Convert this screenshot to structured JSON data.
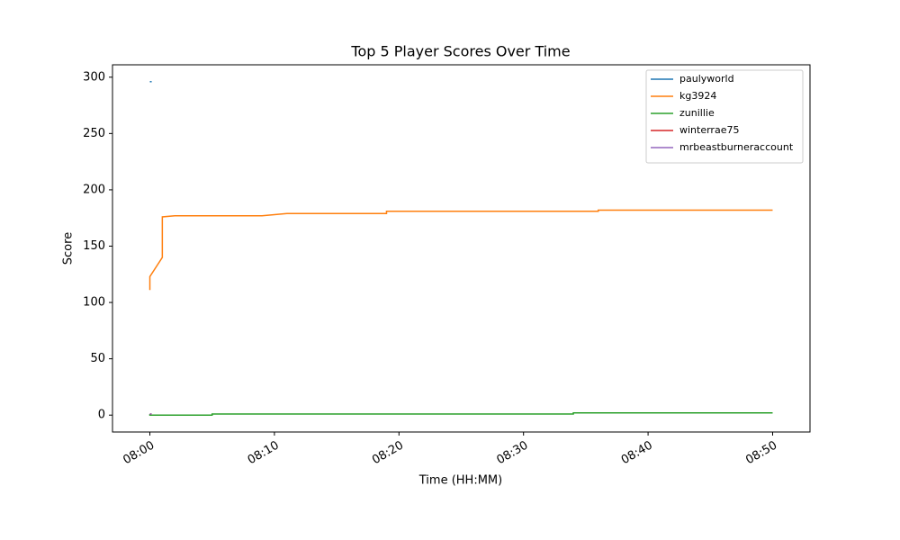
{
  "chart_data": {
    "type": "line",
    "title": "Top 5 Player Scores Over Time",
    "x_label": "Time (HH:MM)",
    "y_label": "Score",
    "xlim": [
      "07:57",
      "08:53"
    ],
    "xticks": [
      "08:00",
      "08:10",
      "08:20",
      "08:30",
      "08:40",
      "08:50"
    ],
    "ylim": [
      -15,
      311
    ],
    "yticks": [
      0,
      50,
      100,
      150,
      200,
      250,
      300
    ],
    "legend": "upper right",
    "series": [
      {
        "name": "paulyworld",
        "color": "#1f77b4",
        "x": [
          "08:00"
        ],
        "values": [
          296
        ]
      },
      {
        "name": "kg3924",
        "color": "#ff7f0e",
        "x": [
          "08:00",
          "08:00",
          "08:01",
          "08:01",
          "08:02",
          "08:09",
          "08:10",
          "08:11",
          "08:19",
          "08:19",
          "08:36",
          "08:36",
          "08:50"
        ],
        "values": [
          111,
          123,
          140,
          176,
          177,
          177,
          178,
          179,
          179,
          181,
          181,
          182,
          182
        ]
      },
      {
        "name": "zunillie",
        "color": "#2ca02c",
        "x": [
          "08:00",
          "08:00",
          "08:05",
          "08:05",
          "08:34",
          "08:34",
          "08:50"
        ],
        "values": [
          1,
          0,
          0,
          1,
          1,
          2,
          2
        ]
      },
      {
        "name": "winterrae75",
        "color": "#d62728",
        "x": [
          "08:00"
        ],
        "values": [
          1
        ]
      },
      {
        "name": "mrbeastburneraccount",
        "color": "#9467bd",
        "x": [
          "08:00"
        ],
        "values": [
          1
        ]
      }
    ]
  }
}
